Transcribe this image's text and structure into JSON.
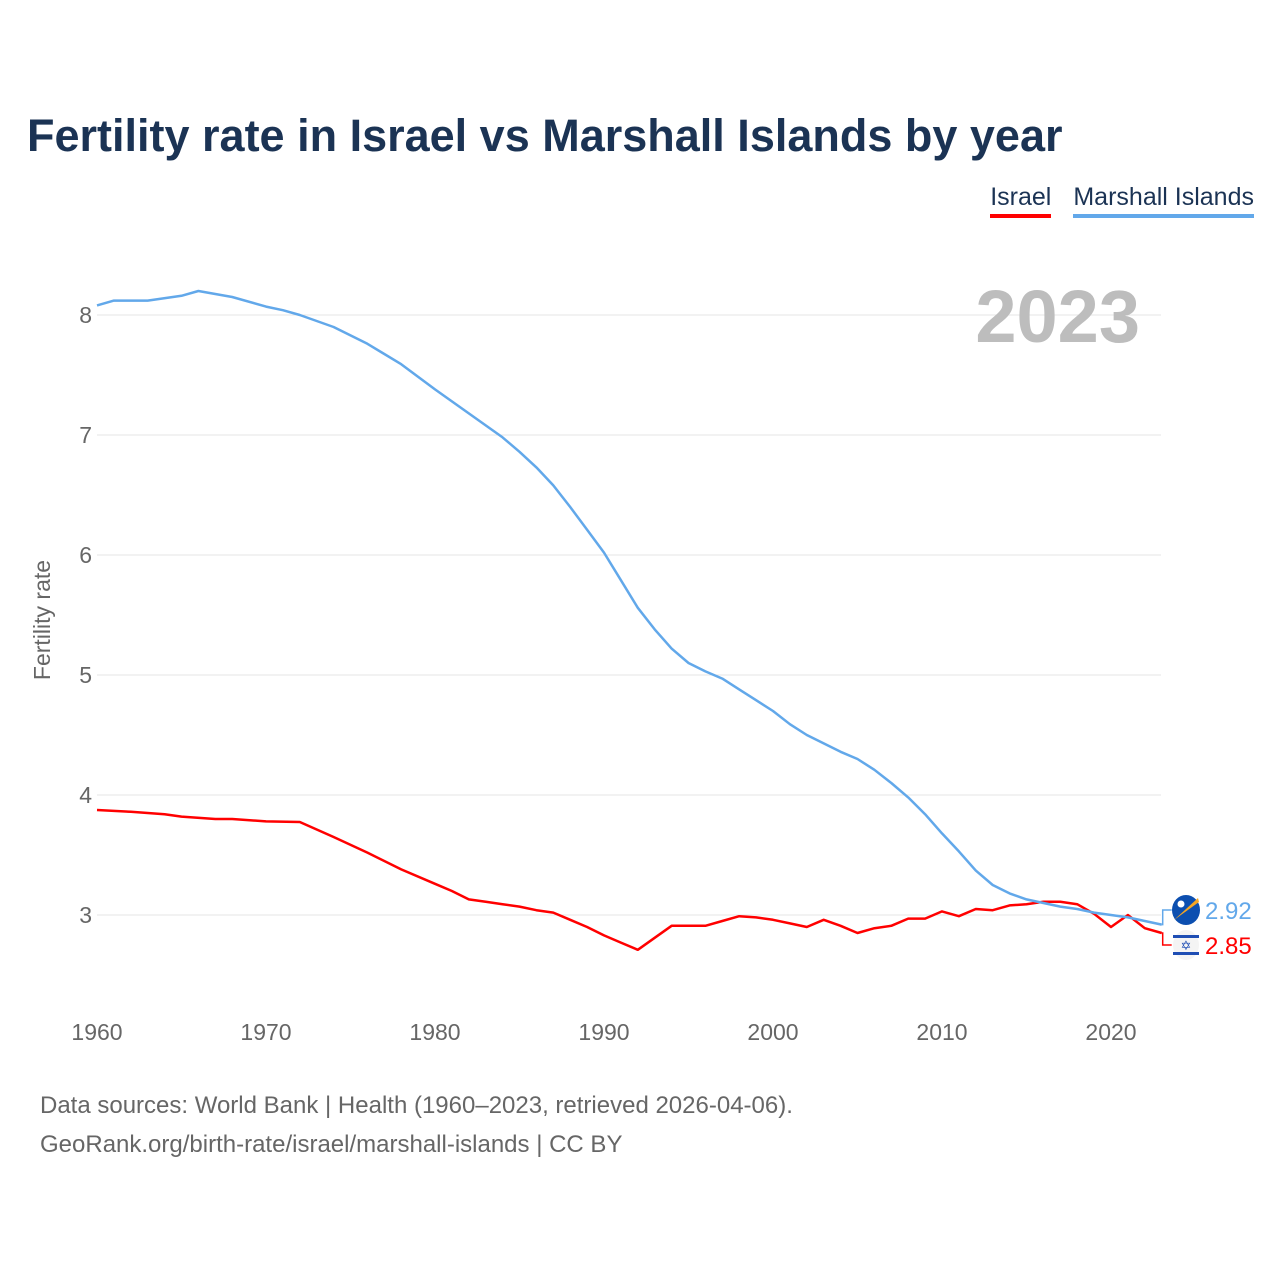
{
  "chart_data": {
    "type": "line",
    "title": "Fertility rate in Israel vs Marshall Islands by year",
    "xlabel": "",
    "ylabel": "Fertility rate",
    "xlim": [
      1960,
      2023
    ],
    "ylim": [
      2.4,
      8.4
    ],
    "x_ticks": [
      "1960",
      "1970",
      "1980",
      "1990",
      "2000",
      "2010",
      "2020"
    ],
    "y_ticks": [
      "3",
      "4",
      "5",
      "6",
      "7",
      "8"
    ],
    "grid": true,
    "legend_position": "top-right",
    "year_label": "2023",
    "series": [
      {
        "name": "Israel",
        "color": "#ff0000",
        "end_label": "2.85",
        "flag": "israel-flag",
        "points": [
          [
            1960,
            3.875
          ],
          [
            1962,
            3.86
          ],
          [
            1964,
            3.84
          ],
          [
            1965,
            3.82
          ],
          [
            1967,
            3.8
          ],
          [
            1968,
            3.8
          ],
          [
            1970,
            3.78
          ],
          [
            1972,
            3.775
          ],
          [
            1974,
            3.65
          ],
          [
            1976,
            3.52
          ],
          [
            1978,
            3.38
          ],
          [
            1980,
            3.26
          ],
          [
            1981,
            3.2
          ],
          [
            1982,
            3.13
          ],
          [
            1983,
            3.11
          ],
          [
            1984,
            3.09
          ],
          [
            1985,
            3.07
          ],
          [
            1986,
            3.04
          ],
          [
            1987,
            3.02
          ],
          [
            1988,
            2.96
          ],
          [
            1989,
            2.9
          ],
          [
            1990,
            2.83
          ],
          [
            1991,
            2.77
          ],
          [
            1992,
            2.71
          ],
          [
            1993,
            2.81
          ],
          [
            1994,
            2.91
          ],
          [
            1995,
            2.91
          ],
          [
            1996,
            2.91
          ],
          [
            1997,
            2.95
          ],
          [
            1998,
            2.99
          ],
          [
            1999,
            2.98
          ],
          [
            2000,
            2.96
          ],
          [
            2001,
            2.93
          ],
          [
            2002,
            2.9
          ],
          [
            2003,
            2.96
          ],
          [
            2004,
            2.91
          ],
          [
            2005,
            2.85
          ],
          [
            2006,
            2.89
          ],
          [
            2007,
            2.91
          ],
          [
            2008,
            2.97
          ],
          [
            2009,
            2.97
          ],
          [
            2010,
            3.03
          ],
          [
            2011,
            2.99
          ],
          [
            2012,
            3.05
          ],
          [
            2013,
            3.04
          ],
          [
            2014,
            3.08
          ],
          [
            2015,
            3.09
          ],
          [
            2016,
            3.11
          ],
          [
            2017,
            3.11
          ],
          [
            2018,
            3.09
          ],
          [
            2019,
            3.01
          ],
          [
            2020,
            2.9
          ],
          [
            2021,
            3.0
          ],
          [
            2022,
            2.89
          ],
          [
            2023,
            2.85
          ]
        ]
      },
      {
        "name": "Marshall Islands",
        "color": "#62a8ea",
        "end_label": "2.92",
        "flag": "marshall-islands-flag",
        "points": [
          [
            1960,
            8.08
          ],
          [
            1961,
            8.12
          ],
          [
            1963,
            8.12
          ],
          [
            1965,
            8.16
          ],
          [
            1966,
            8.2
          ],
          [
            1968,
            8.15
          ],
          [
            1970,
            8.07
          ],
          [
            1971,
            8.04
          ],
          [
            1972,
            8.0
          ],
          [
            1974,
            7.9
          ],
          [
            1976,
            7.76
          ],
          [
            1978,
            7.59
          ],
          [
            1980,
            7.38
          ],
          [
            1982,
            7.18
          ],
          [
            1984,
            6.98
          ],
          [
            1985,
            6.86
          ],
          [
            1986,
            6.73
          ],
          [
            1987,
            6.58
          ],
          [
            1988,
            6.4
          ],
          [
            1989,
            6.21
          ],
          [
            1990,
            6.02
          ],
          [
            1991,
            5.79
          ],
          [
            1992,
            5.56
          ],
          [
            1993,
            5.38
          ],
          [
            1994,
            5.22
          ],
          [
            1995,
            5.1
          ],
          [
            1996,
            5.03
          ],
          [
            1997,
            4.97
          ],
          [
            1998,
            4.88
          ],
          [
            1999,
            4.79
          ],
          [
            2000,
            4.7
          ],
          [
            2001,
            4.59
          ],
          [
            2002,
            4.5
          ],
          [
            2003,
            4.43
          ],
          [
            2004,
            4.36
          ],
          [
            2005,
            4.3
          ],
          [
            2006,
            4.21
          ],
          [
            2007,
            4.1
          ],
          [
            2008,
            3.98
          ],
          [
            2009,
            3.84
          ],
          [
            2010,
            3.68
          ],
          [
            2011,
            3.53
          ],
          [
            2012,
            3.37
          ],
          [
            2013,
            3.25
          ],
          [
            2014,
            3.18
          ],
          [
            2015,
            3.13
          ],
          [
            2016,
            3.1
          ],
          [
            2017,
            3.07
          ],
          [
            2018,
            3.05
          ],
          [
            2019,
            3.02
          ],
          [
            2020,
            3.0
          ],
          [
            2021,
            2.98
          ],
          [
            2022,
            2.95
          ],
          [
            2023,
            2.92
          ]
        ]
      }
    ],
    "footer": {
      "source": "Data sources: World Bank | Health (1960–2023, retrieved 2026-04-06).",
      "credit": "GeoRank.org/birth-rate/israel/marshall-islands | CC BY"
    }
  }
}
